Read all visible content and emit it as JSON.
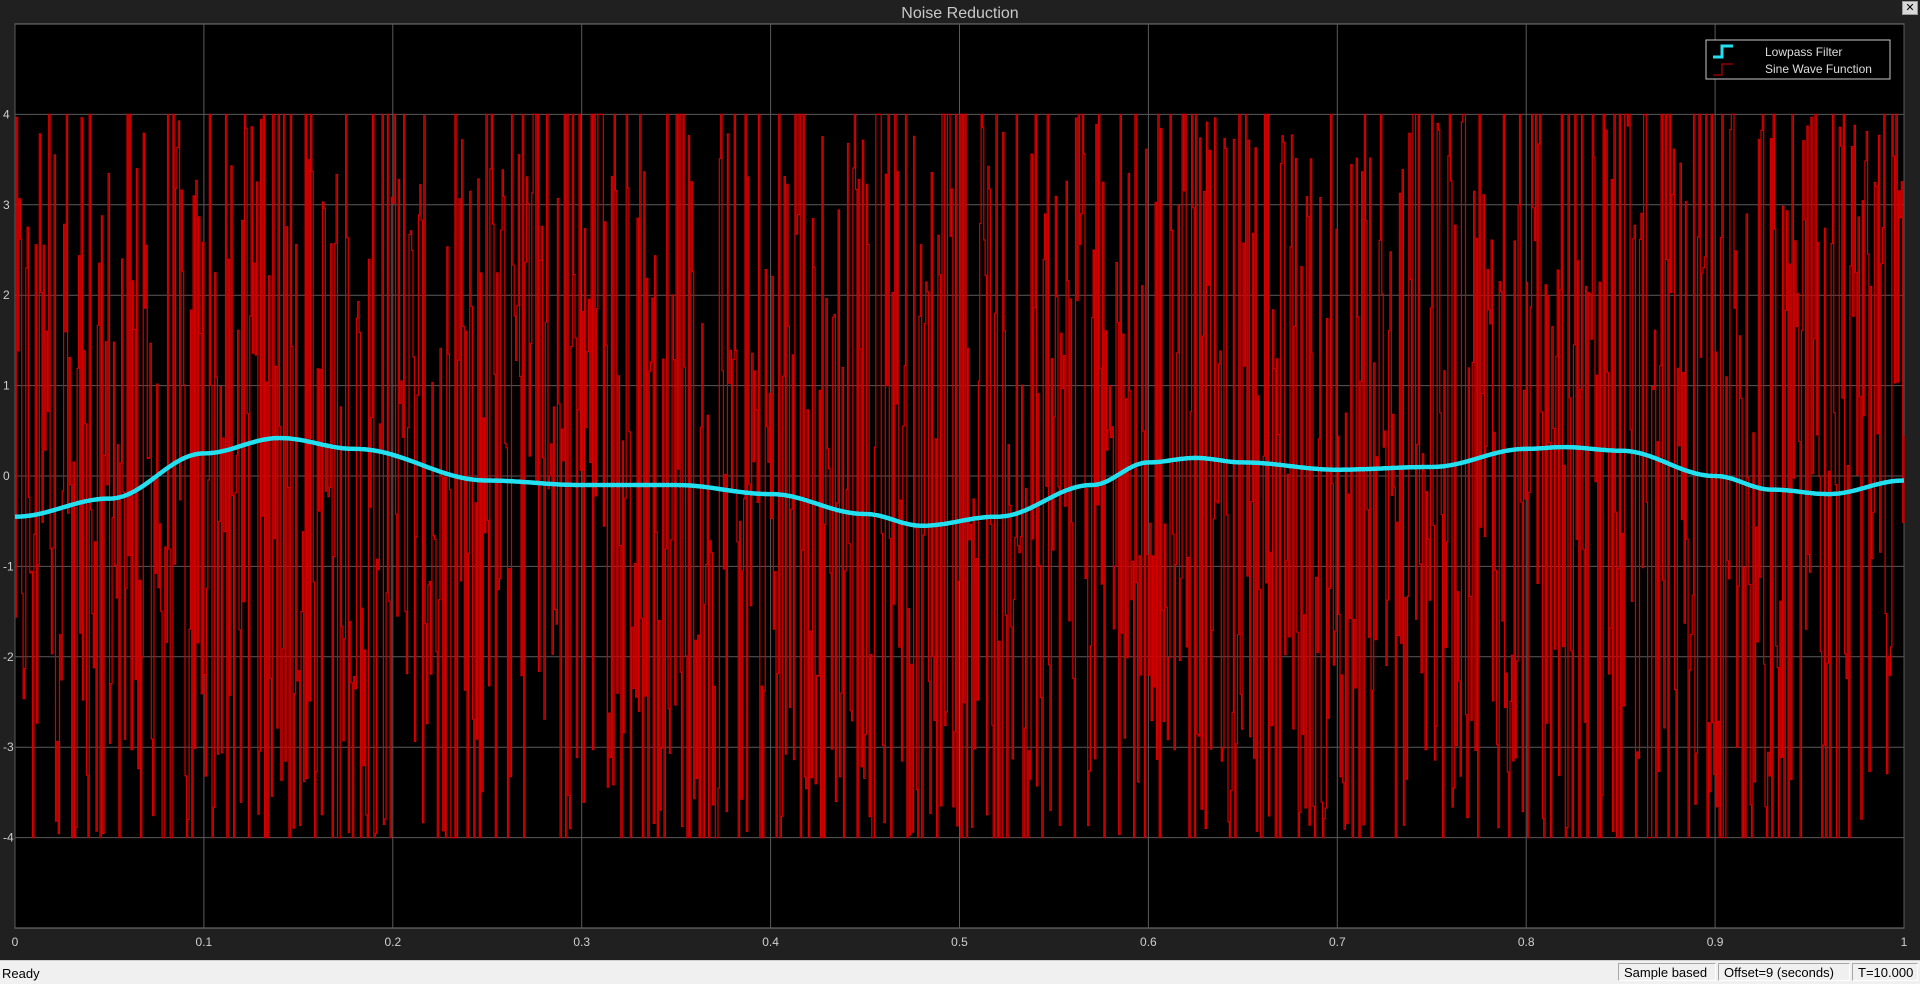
{
  "window": {
    "title": "Noise Reduction",
    "close_label": "✕"
  },
  "status_bar": {
    "status": "Ready",
    "mode": "Sample based",
    "offset": "Offset=9 (seconds)",
    "time": "T=10.000"
  },
  "colors": {
    "background": "#000000",
    "grid": "#5a5a5a",
    "filter": "#22e0f0",
    "sine": "#d40000"
  },
  "chart_data": {
    "type": "line",
    "title": "Noise Reduction",
    "xlabel": "",
    "ylabel": "",
    "xlim": [
      0,
      1
    ],
    "ylim": [
      -5,
      5
    ],
    "grid": true,
    "legend_position": "top-right",
    "xticks": [
      "0",
      "0.1",
      "0.2",
      "0.3",
      "0.4",
      "0.5",
      "0.6",
      "0.7",
      "0.8",
      "0.9",
      "1"
    ],
    "yticks": [
      "4",
      "3",
      "2",
      "1",
      "0",
      "-1",
      "-2",
      "-3",
      "-4"
    ],
    "series": [
      {
        "name": "Lowpass Filter",
        "color": "#22e0f0",
        "style": "staircase, thick",
        "x": [
          0,
          0.05,
          0.1,
          0.14,
          0.18,
          0.25,
          0.3,
          0.35,
          0.4,
          0.45,
          0.48,
          0.52,
          0.57,
          0.6,
          0.625,
          0.65,
          0.7,
          0.75,
          0.8,
          0.82,
          0.85,
          0.9,
          0.93,
          0.96,
          1
        ],
        "values": [
          -0.45,
          -0.25,
          0.25,
          0.42,
          0.3,
          -0.05,
          -0.1,
          -0.1,
          -0.2,
          -0.42,
          -0.55,
          -0.45,
          -0.1,
          0.15,
          0.2,
          0.15,
          0.07,
          0.1,
          0.3,
          0.32,
          0.28,
          0.0,
          -0.15,
          -0.2,
          -0.05
        ]
      },
      {
        "name": "Sine Wave Function",
        "color": "#d40000",
        "style": "staircase, noisy",
        "amplitude_range": [
          -4,
          4
        ],
        "values": []
      }
    ]
  }
}
